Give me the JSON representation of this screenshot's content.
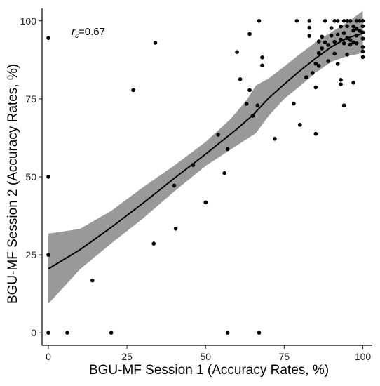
{
  "chart_data": {
    "type": "scatter",
    "xlabel": "BGU-MF Session 1 (Accuracy Rates, %)",
    "ylabel": "BGU-MF Session 2 (Accuracy Rates, %)",
    "xlim": [
      -2,
      103
    ],
    "ylim": [
      -4,
      104
    ],
    "x_ticks": [
      0,
      25,
      50,
      75,
      100
    ],
    "y_ticks": [
      0,
      25,
      50,
      75,
      100
    ],
    "grid": false,
    "legend": "none",
    "annotation": {
      "symbol": "r",
      "subscript": "s",
      "text": "=0.67"
    },
    "points": [
      [
        0,
        94.5
      ],
      [
        0,
        50
      ],
      [
        0,
        25
      ],
      [
        0,
        0
      ],
      [
        6,
        0
      ],
      [
        14,
        16.8
      ],
      [
        20,
        0
      ],
      [
        27,
        77.8
      ],
      [
        33.5,
        28.6
      ],
      [
        34,
        93
      ],
      [
        40,
        47.2
      ],
      [
        40.5,
        33.4
      ],
      [
        46,
        53.8
      ],
      [
        50,
        41.8
      ],
      [
        54,
        63.5
      ],
      [
        56,
        51.2
      ],
      [
        57,
        58.9
      ],
      [
        57,
        0
      ],
      [
        60,
        90
      ],
      [
        61,
        81.3
      ],
      [
        63,
        73.4
      ],
      [
        64,
        77.8
      ],
      [
        64,
        95.8
      ],
      [
        65,
        69.6
      ],
      [
        66.5,
        72.9
      ],
      [
        67,
        100
      ],
      [
        67,
        0
      ],
      [
        68,
        88.3
      ],
      [
        68,
        85.7
      ],
      [
        72,
        62.2
      ],
      [
        78,
        73.5
      ],
      [
        79,
        100
      ],
      [
        80,
        66.7
      ],
      [
        82,
        81.9
      ],
      [
        83,
        100
      ],
      [
        83,
        97.8
      ],
      [
        83,
        95.2
      ],
      [
        84,
        83.3
      ],
      [
        85,
        78.7
      ],
      [
        85,
        63.8
      ],
      [
        85,
        86.3
      ],
      [
        86,
        85.6
      ],
      [
        86,
        89.7
      ],
      [
        86,
        93.4
      ],
      [
        87,
        94.9
      ],
      [
        87,
        91.2
      ],
      [
        88,
        93.1
      ],
      [
        88,
        100
      ],
      [
        89,
        92.3
      ],
      [
        89,
        87.1
      ],
      [
        90,
        97.7
      ],
      [
        90,
        95.3
      ],
      [
        91,
        100
      ],
      [
        91,
        93.3
      ],
      [
        91,
        89.5
      ],
      [
        92,
        86.2
      ],
      [
        92,
        100
      ],
      [
        92,
        95.6
      ],
      [
        93,
        81.1
      ],
      [
        93,
        79.7
      ],
      [
        93,
        98.2
      ],
      [
        93,
        94
      ],
      [
        94,
        100
      ],
      [
        94,
        92.8
      ],
      [
        94,
        96.1
      ],
      [
        94,
        72.9
      ],
      [
        95,
        100
      ],
      [
        95,
        98.3
      ],
      [
        95,
        89.2
      ],
      [
        95,
        94.5
      ],
      [
        96,
        93.9
      ],
      [
        96,
        100
      ],
      [
        96,
        92.4
      ],
      [
        97,
        98.2
      ],
      [
        97,
        96.9
      ],
      [
        97,
        93.1
      ],
      [
        97,
        80.2
      ],
      [
        98,
        100
      ],
      [
        98,
        97.5
      ],
      [
        98,
        95.3
      ],
      [
        98,
        92.8
      ],
      [
        99,
        100
      ],
      [
        99,
        96.8
      ],
      [
        100,
        100
      ],
      [
        100,
        98.3
      ],
      [
        100,
        96.3
      ],
      [
        100,
        94.3
      ],
      [
        100,
        91.6
      ],
      [
        100,
        90.2
      ],
      [
        100,
        88.4
      ]
    ],
    "fit_line": [
      [
        0,
        20.5
      ],
      [
        10,
        26.6
      ],
      [
        20,
        33.8
      ],
      [
        30,
        41.5
      ],
      [
        40,
        49.5
      ],
      [
        50,
        57.3
      ],
      [
        60,
        65.4
      ],
      [
        65,
        69.8
      ],
      [
        70,
        75.2
      ],
      [
        75,
        79.7
      ],
      [
        80,
        84
      ],
      [
        85,
        88
      ],
      [
        90,
        91.7
      ],
      [
        95,
        94.5
      ],
      [
        100,
        96
      ]
    ],
    "ci_upper": [
      [
        0,
        31.8
      ],
      [
        10,
        33.3
      ],
      [
        20,
        39.1
      ],
      [
        30,
        46.6
      ],
      [
        40,
        53.6
      ],
      [
        50,
        61.2
      ],
      [
        58,
        68.6
      ],
      [
        63,
        74.6
      ],
      [
        66,
        79.3
      ],
      [
        70,
        81.5
      ],
      [
        75,
        85.4
      ],
      [
        80,
        89.4
      ],
      [
        85,
        93.2
      ],
      [
        90,
        96.4
      ],
      [
        95,
        99.5
      ],
      [
        100,
        103.2
      ]
    ],
    "ci_lower": [
      [
        0,
        9.3
      ],
      [
        10,
        20.3
      ],
      [
        20,
        28.7
      ],
      [
        30,
        36.6
      ],
      [
        40,
        45.3
      ],
      [
        50,
        53.5
      ],
      [
        60,
        60.1
      ],
      [
        66,
        64
      ],
      [
        70,
        69.5
      ],
      [
        75,
        75
      ],
      [
        80,
        79.1
      ],
      [
        85,
        83.4
      ],
      [
        90,
        86.9
      ],
      [
        95,
        88.7
      ],
      [
        100,
        89.7
      ]
    ]
  }
}
